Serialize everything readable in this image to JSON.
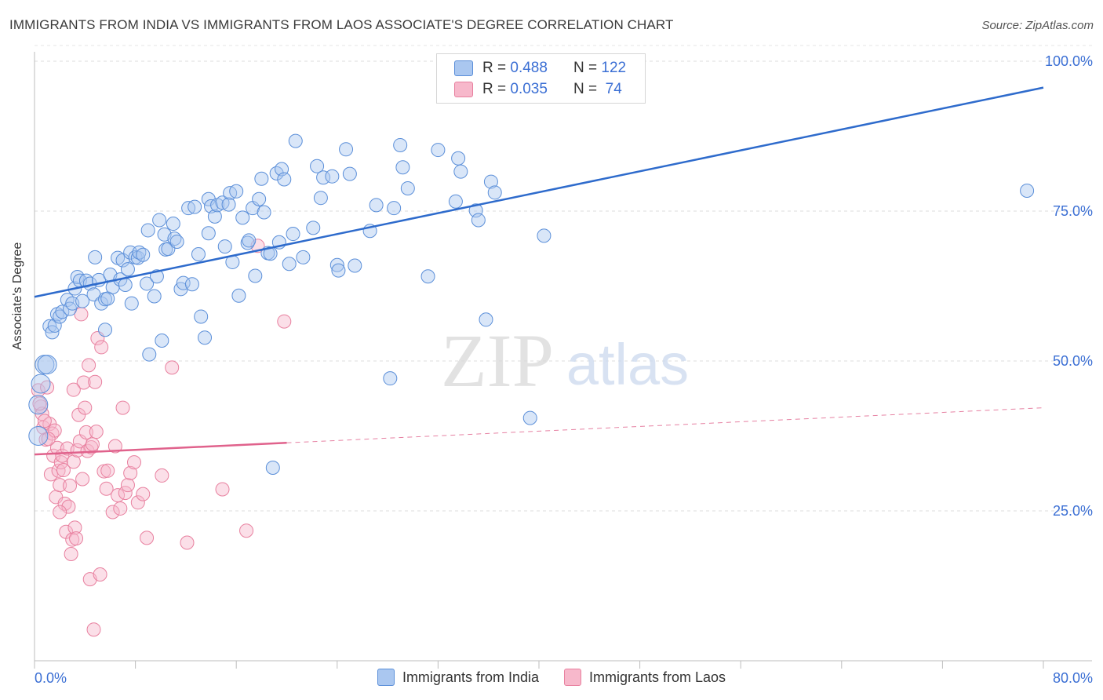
{
  "title": "IMMIGRANTS FROM INDIA VS IMMIGRANTS FROM LAOS ASSOCIATE'S DEGREE CORRELATION CHART",
  "source": "Source: ZipAtlas.com",
  "watermark": {
    "zip": "ZIP",
    "atlas": "atlas"
  },
  "colors": {
    "india_fill": "#aac7f0",
    "india_stroke": "#5b8fd9",
    "india_line": "#2e6bcc",
    "laos_fill": "#f7b8cb",
    "laos_stroke": "#e8809f",
    "laos_line": "#e0628c",
    "tick_text": "#3b6fd4"
  },
  "legend_top": {
    "rows": [
      {
        "r_label": "R = ",
        "r_value": "0.488",
        "n_label": "N = ",
        "n_value": "122"
      },
      {
        "r_label": "R = ",
        "r_value": "0.035",
        "n_label": "N = ",
        "n_value": " 74"
      }
    ]
  },
  "chart_data": {
    "type": "scatter",
    "title": "IMMIGRANTS FROM INDIA VS IMMIGRANTS FROM LAOS ASSOCIATE'S DEGREE CORRELATION CHART",
    "xlabel": "",
    "ylabel": "Associate's Degree",
    "xlim": [
      0,
      80
    ],
    "ylim": [
      0,
      100
    ],
    "x_tick_labels": [
      "0.0%",
      "80.0%"
    ],
    "y_tick_labels": [
      "100.0%",
      "75.0%",
      "50.0%",
      "25.0%"
    ],
    "y_ticks": [
      100,
      75,
      50,
      25
    ],
    "grid": true,
    "legend_placement": "bottom",
    "series": [
      {
        "name": "Immigrants from India",
        "r": 0.488,
        "n": 122,
        "trend": {
          "x": [
            0,
            80
          ],
          "y": [
            60.7,
            95.6
          ]
        },
        "points": [
          [
            0.3,
            37.5
          ],
          [
            0.3,
            42.7
          ],
          [
            0.5,
            46.2
          ],
          [
            0.8,
            49.4
          ],
          [
            1.0,
            49.4
          ],
          [
            1.2,
            55.8
          ],
          [
            1.4,
            54.8
          ],
          [
            1.6,
            55.9
          ],
          [
            1.8,
            57.8
          ],
          [
            2.0,
            57.4
          ],
          [
            2.2,
            58.2
          ],
          [
            2.6,
            60.2
          ],
          [
            2.8,
            58.7
          ],
          [
            3.0,
            59.6
          ],
          [
            3.2,
            62.1
          ],
          [
            3.4,
            64.0
          ],
          [
            3.6,
            63.4
          ],
          [
            3.8,
            60.0
          ],
          [
            4.1,
            63.4
          ],
          [
            4.4,
            62.9
          ],
          [
            4.7,
            61.1
          ],
          [
            4.8,
            67.3
          ],
          [
            5.1,
            63.5
          ],
          [
            5.3,
            59.6
          ],
          [
            5.6,
            55.2
          ],
          [
            5.6,
            60.3
          ],
          [
            5.8,
            60.4
          ],
          [
            6.0,
            64.4
          ],
          [
            6.2,
            62.3
          ],
          [
            6.6,
            67.2
          ],
          [
            6.8,
            63.6
          ],
          [
            7.0,
            66.8
          ],
          [
            7.2,
            62.7
          ],
          [
            7.4,
            65.3
          ],
          [
            7.6,
            68.1
          ],
          [
            7.7,
            59.6
          ],
          [
            8.0,
            67.3
          ],
          [
            8.2,
            67.2
          ],
          [
            8.3,
            68.1
          ],
          [
            8.6,
            67.7
          ],
          [
            8.9,
            62.9
          ],
          [
            9.0,
            71.8
          ],
          [
            9.1,
            51.1
          ],
          [
            9.5,
            60.8
          ],
          [
            9.7,
            64.1
          ],
          [
            9.9,
            73.5
          ],
          [
            10.1,
            53.4
          ],
          [
            10.3,
            71.1
          ],
          [
            10.4,
            68.6
          ],
          [
            10.6,
            68.7
          ],
          [
            11.0,
            72.9
          ],
          [
            11.1,
            70.4
          ],
          [
            11.3,
            69.9
          ],
          [
            11.6,
            62.0
          ],
          [
            11.8,
            63.0
          ],
          [
            12.2,
            75.5
          ],
          [
            12.5,
            62.8
          ],
          [
            12.7,
            75.7
          ],
          [
            13.0,
            67.8
          ],
          [
            13.2,
            57.4
          ],
          [
            13.5,
            53.9
          ],
          [
            13.8,
            77.0
          ],
          [
            13.8,
            71.3
          ],
          [
            14.0,
            75.8
          ],
          [
            14.3,
            74.1
          ],
          [
            14.5,
            76.0
          ],
          [
            14.9,
            76.4
          ],
          [
            15.1,
            69.1
          ],
          [
            15.5,
            78.0
          ],
          [
            15.7,
            66.5
          ],
          [
            16.0,
            78.3
          ],
          [
            16.2,
            60.9
          ],
          [
            16.5,
            73.9
          ],
          [
            16.9,
            69.7
          ],
          [
            17.0,
            70.1
          ],
          [
            17.3,
            75.5
          ],
          [
            17.5,
            64.2
          ],
          [
            17.8,
            77.0
          ],
          [
            18.0,
            80.4
          ],
          [
            18.2,
            74.8
          ],
          [
            18.5,
            68.0
          ],
          [
            18.7,
            67.9
          ],
          [
            19.2,
            81.3
          ],
          [
            19.4,
            69.8
          ],
          [
            19.6,
            82.0
          ],
          [
            19.8,
            80.3
          ],
          [
            20.2,
            66.2
          ],
          [
            20.5,
            71.2
          ],
          [
            20.7,
            86.7
          ],
          [
            21.3,
            67.3
          ],
          [
            22.1,
            72.2
          ],
          [
            22.4,
            82.5
          ],
          [
            22.7,
            77.2
          ],
          [
            22.9,
            80.6
          ],
          [
            23.6,
            80.8
          ],
          [
            24.0,
            66.0
          ],
          [
            24.1,
            65.1
          ],
          [
            24.7,
            85.3
          ],
          [
            25.0,
            81.2
          ],
          [
            25.4,
            65.9
          ],
          [
            26.6,
            71.7
          ],
          [
            27.1,
            76.0
          ],
          [
            28.2,
            47.1
          ],
          [
            28.5,
            75.5
          ],
          [
            29.0,
            86.0
          ],
          [
            29.2,
            82.3
          ],
          [
            29.6,
            78.8
          ],
          [
            31.2,
            64.1
          ],
          [
            32.0,
            85.2
          ],
          [
            33.4,
            76.6
          ],
          [
            33.6,
            83.8
          ],
          [
            33.8,
            81.6
          ],
          [
            35.0,
            75.1
          ],
          [
            35.2,
            73.5
          ],
          [
            35.8,
            56.9
          ],
          [
            36.2,
            79.9
          ],
          [
            36.5,
            78.1
          ],
          [
            39.3,
            40.5
          ],
          [
            40.4,
            70.9
          ],
          [
            78.7,
            78.4
          ],
          [
            18.9,
            32.2
          ],
          [
            15.4,
            76.1
          ]
        ]
      },
      {
        "name": "Immigrants from Laos",
        "r": 0.035,
        "n": 74,
        "trend": {
          "x": [
            0,
            80
          ],
          "y": [
            34.4,
            42.2
          ]
        },
        "points": [
          [
            0.3,
            45.1
          ],
          [
            0.5,
            42.4
          ],
          [
            0.6,
            41.2
          ],
          [
            0.7,
            38.9
          ],
          [
            0.9,
            36.9
          ],
          [
            1.0,
            45.6
          ],
          [
            1.2,
            39.5
          ],
          [
            1.3,
            31.1
          ],
          [
            1.4,
            37.9
          ],
          [
            1.5,
            34.2
          ],
          [
            1.6,
            38.4
          ],
          [
            1.7,
            27.3
          ],
          [
            1.8,
            35.5
          ],
          [
            1.9,
            31.7
          ],
          [
            2.0,
            29.3
          ],
          [
            2.1,
            33.1
          ],
          [
            2.2,
            34.2
          ],
          [
            2.3,
            31.8
          ],
          [
            2.4,
            26.2
          ],
          [
            2.5,
            21.5
          ],
          [
            2.6,
            35.4
          ],
          [
            2.7,
            25.7
          ],
          [
            2.8,
            29.2
          ],
          [
            2.9,
            17.8
          ],
          [
            3.0,
            20.2
          ],
          [
            3.1,
            33.2
          ],
          [
            3.2,
            22.2
          ],
          [
            3.3,
            20.4
          ],
          [
            3.4,
            35.1
          ],
          [
            3.5,
            41.0
          ],
          [
            3.6,
            36.6
          ],
          [
            3.7,
            57.8
          ],
          [
            3.8,
            30.3
          ],
          [
            3.9,
            46.4
          ],
          [
            4.0,
            42.2
          ],
          [
            4.1,
            38.1
          ],
          [
            4.2,
            35.0
          ],
          [
            4.3,
            49.3
          ],
          [
            4.4,
            13.6
          ],
          [
            4.5,
            35.6
          ],
          [
            4.6,
            36.1
          ],
          [
            4.7,
            5.2
          ],
          [
            4.8,
            46.5
          ],
          [
            4.9,
            38.2
          ],
          [
            5.0,
            53.8
          ],
          [
            5.2,
            14.4
          ],
          [
            5.3,
            52.3
          ],
          [
            5.5,
            31.6
          ],
          [
            5.8,
            31.7
          ],
          [
            6.2,
            24.8
          ],
          [
            6.4,
            35.8
          ],
          [
            6.6,
            27.6
          ],
          [
            6.8,
            25.4
          ],
          [
            7.0,
            42.2
          ],
          [
            7.2,
            28.0
          ],
          [
            7.4,
            29.3
          ],
          [
            7.6,
            31.3
          ],
          [
            7.9,
            33.1
          ],
          [
            8.2,
            26.4
          ],
          [
            8.6,
            27.8
          ],
          [
            8.9,
            20.5
          ],
          [
            10.1,
            30.9
          ],
          [
            10.9,
            48.9
          ],
          [
            12.1,
            19.7
          ],
          [
            14.9,
            28.6
          ],
          [
            16.8,
            21.7
          ],
          [
            17.7,
            69.2
          ],
          [
            19.8,
            56.6
          ],
          [
            0.4,
            42.9
          ],
          [
            0.8,
            40.0
          ],
          [
            1.1,
            37.0
          ],
          [
            2.0,
            24.8
          ],
          [
            3.1,
            45.2
          ],
          [
            5.7,
            28.7
          ]
        ]
      }
    ]
  },
  "bottom_legend": [
    "Immigrants from India",
    "Immigrants from Laos"
  ]
}
